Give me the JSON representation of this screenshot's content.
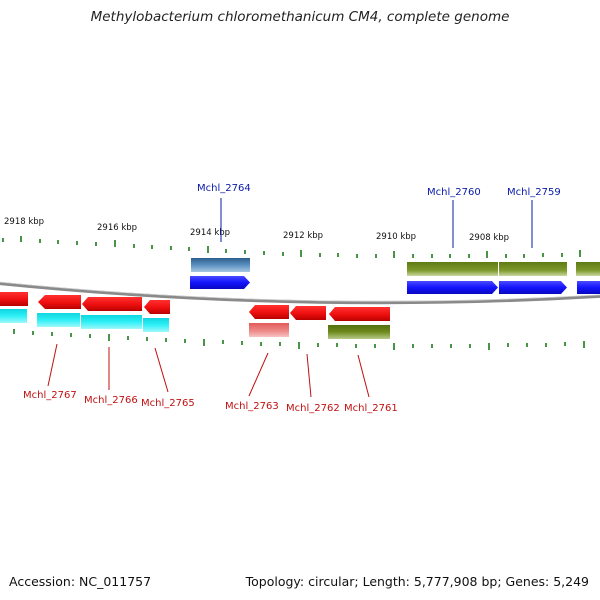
{
  "title": "Methylobacterium chloromethanicum CM4, complete genome",
  "footer": {
    "accession": "Accession: NC_011757",
    "summary": "Topology: circular; Length: 5,777,908 bp; Genes: 5,249"
  },
  "colors": {
    "forward_cds": "#1a1aff",
    "forward_rna": "#3f77a8",
    "forward_other": "#6e8a1e",
    "reverse_cds": "#ee1111",
    "reverse_alt": "#14e0e8",
    "reverse_pseudo": "#ec7878",
    "reverse_other": "#6e8a1e",
    "backbone": "#8a8a8a",
    "tick": "#1c7a1c",
    "label_forward": "#0a1aa8",
    "label_reverse": "#c01010"
  },
  "ruler": {
    "unit": "kbp",
    "labels": [
      "2918 kbp",
      "2916 kbp",
      "2914 kbp",
      "2912 kbp",
      "2910 kbp",
      "2908 kbp"
    ]
  },
  "genes_forward_labeled": [
    "Mchl_2764",
    "Mchl_2760",
    "Mchl_2759"
  ],
  "genes_reverse_labeled": [
    "Mchl_2767",
    "Mchl_2766",
    "Mchl_2765",
    "Mchl_2763",
    "Mchl_2762",
    "Mchl_2761"
  ]
}
